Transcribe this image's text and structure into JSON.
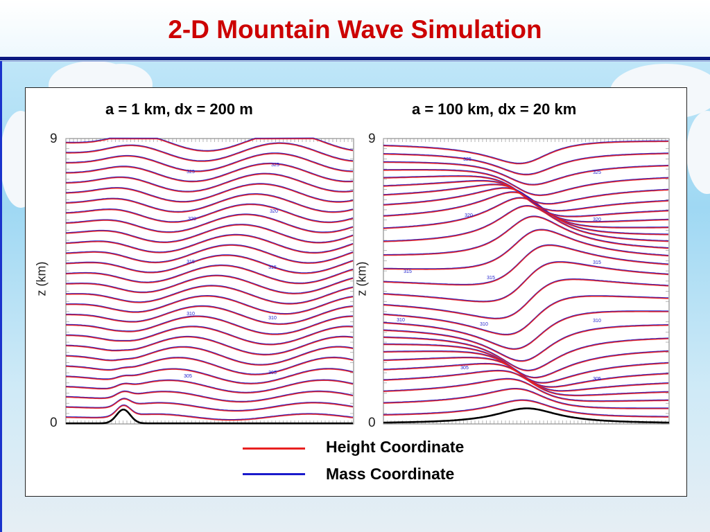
{
  "slide": {
    "title": "2-D Mountain Wave Simulation"
  },
  "colors": {
    "height_coordinate": "#e82020",
    "mass_coordinate": "#1a1acc",
    "title": "#cc0000",
    "terrain": "#000000"
  },
  "chart_data": [
    {
      "type": "line",
      "subtype": "isentrope contours",
      "title": "a = 1 km,  dx = 200 m",
      "ylabel": "z (km)",
      "ylim": [
        0,
        9
      ],
      "yticks": [
        "9",
        "0"
      ],
      "contour_labels": [
        "325",
        "325",
        "320",
        "320",
        "315",
        "315",
        "310",
        "310",
        "305",
        "305"
      ],
      "mountain_half_width_km": 1,
      "grid_spacing": "200 m",
      "series": [
        {
          "name": "Height Coordinate"
        },
        {
          "name": "Mass Coordinate"
        }
      ]
    },
    {
      "type": "line",
      "subtype": "isentrope contours",
      "title": "a = 100 km, dx = 20 km",
      "ylabel": "z (km)",
      "ylim": [
        0,
        9
      ],
      "yticks": [
        "9",
        "0"
      ],
      "contour_labels": [
        "325",
        "325",
        "320",
        "320",
        "315",
        "315",
        "315",
        "310",
        "310",
        "310",
        "305",
        "305"
      ],
      "mountain_half_width_km": 100,
      "grid_spacing": "20 km",
      "series": [
        {
          "name": "Height Coordinate"
        },
        {
          "name": "Mass Coordinate"
        }
      ]
    }
  ],
  "legend": [
    {
      "label": "Height Coordinate",
      "color": "#e82020"
    },
    {
      "label": "Mass Coordinate",
      "color": "#1a1acc"
    }
  ]
}
